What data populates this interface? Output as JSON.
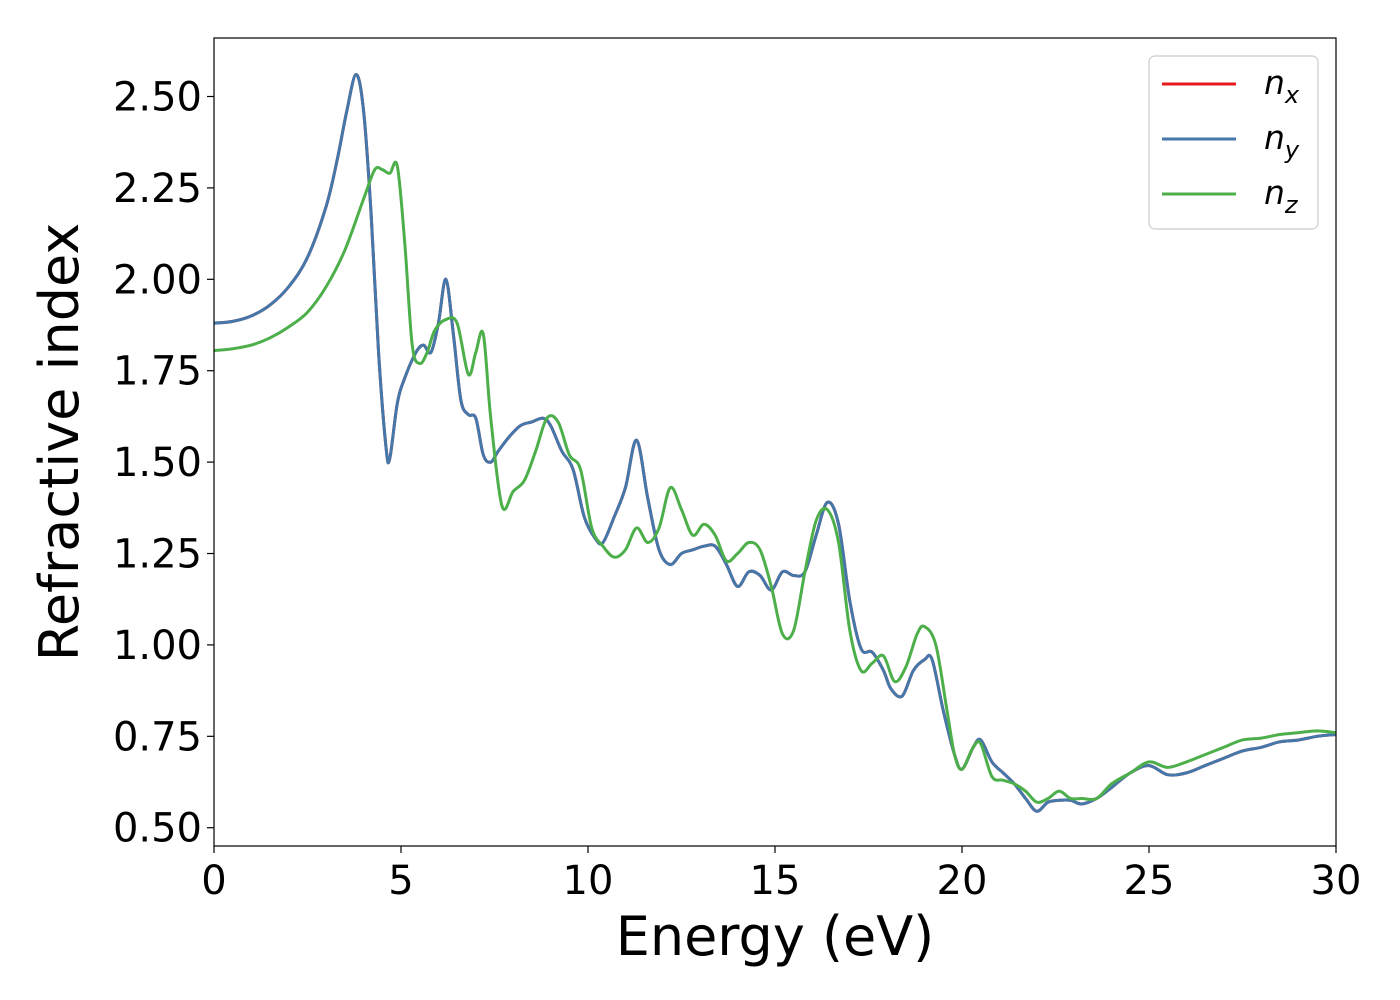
{
  "chart_data": {
    "type": "line",
    "xlabel": "Energy (eV)",
    "ylabel": "Refractive index",
    "xlim": [
      0,
      30
    ],
    "ylim": [
      0.45,
      2.66
    ],
    "xticks": [
      0,
      5,
      10,
      15,
      20,
      25,
      30
    ],
    "xtick_labels": [
      "0",
      "5",
      "10",
      "15",
      "20",
      "25",
      "30"
    ],
    "yticks": [
      0.5,
      0.75,
      1.0,
      1.25,
      1.5,
      1.75,
      2.0,
      2.25,
      2.5
    ],
    "ytick_labels": [
      "0.50",
      "0.75",
      "1.00",
      "1.25",
      "1.50",
      "1.75",
      "2.00",
      "2.25",
      "2.50"
    ],
    "grid": false,
    "legend_position": "top-right",
    "series": [
      {
        "name": "n_x",
        "label_base": "n",
        "label_sub": "x",
        "color": "#e41a1c",
        "x": [
          0,
          0.5,
          1.0,
          1.5,
          2.0,
          2.5,
          3.0,
          3.3,
          3.55,
          3.8,
          4.0,
          4.2,
          4.4,
          4.6,
          4.7,
          4.9,
          5.1,
          5.4,
          5.6,
          5.8,
          6.0,
          6.2,
          6.4,
          6.6,
          6.8,
          7.0,
          7.2,
          7.4,
          7.6,
          7.9,
          8.2,
          8.5,
          8.8,
          9.0,
          9.3,
          9.6,
          9.9,
          10.2,
          10.4,
          10.7,
          11.0,
          11.3,
          11.6,
          11.9,
          12.2,
          12.5,
          12.8,
          13.1,
          13.4,
          13.7,
          14.0,
          14.3,
          14.6,
          14.9,
          15.2,
          15.5,
          15.8,
          16.1,
          16.4,
          16.7,
          17.0,
          17.3,
          17.6,
          17.9,
          18.1,
          18.4,
          18.7,
          19.0,
          19.2,
          19.5,
          19.8,
          20.0,
          20.3,
          20.5,
          20.8,
          21.1,
          21.4,
          21.7,
          22.0,
          22.3,
          22.6,
          22.9,
          23.2,
          23.6,
          24.0,
          24.5,
          25.0,
          25.5,
          26.0,
          26.5,
          27.0,
          27.5,
          28.0,
          28.5,
          29.0,
          29.5,
          30.0
        ],
        "y": [
          1.88,
          1.885,
          1.9,
          1.93,
          1.98,
          2.06,
          2.2,
          2.33,
          2.46,
          2.56,
          2.46,
          2.18,
          1.8,
          1.54,
          1.51,
          1.66,
          1.73,
          1.8,
          1.82,
          1.8,
          1.88,
          2.0,
          1.85,
          1.67,
          1.63,
          1.62,
          1.52,
          1.5,
          1.53,
          1.57,
          1.6,
          1.61,
          1.62,
          1.6,
          1.53,
          1.48,
          1.35,
          1.29,
          1.28,
          1.35,
          1.43,
          1.56,
          1.4,
          1.26,
          1.22,
          1.25,
          1.26,
          1.27,
          1.27,
          1.22,
          1.16,
          1.2,
          1.19,
          1.15,
          1.2,
          1.19,
          1.2,
          1.3,
          1.39,
          1.33,
          1.12,
          0.99,
          0.98,
          0.93,
          0.88,
          0.86,
          0.93,
          0.96,
          0.96,
          0.82,
          0.7,
          0.66,
          0.72,
          0.74,
          0.68,
          0.65,
          0.62,
          0.58,
          0.545,
          0.57,
          0.575,
          0.575,
          0.565,
          0.58,
          0.61,
          0.65,
          0.67,
          0.645,
          0.65,
          0.67,
          0.69,
          0.71,
          0.72,
          0.735,
          0.74,
          0.75,
          0.755
        ]
      },
      {
        "name": "n_y",
        "label_base": "n",
        "label_sub": "y",
        "color": "#4477aa",
        "x": [
          0,
          0.5,
          1.0,
          1.5,
          2.0,
          2.5,
          3.0,
          3.3,
          3.55,
          3.8,
          4.0,
          4.2,
          4.4,
          4.6,
          4.7,
          4.9,
          5.1,
          5.4,
          5.6,
          5.8,
          6.0,
          6.2,
          6.4,
          6.6,
          6.8,
          7.0,
          7.2,
          7.4,
          7.6,
          7.9,
          8.2,
          8.5,
          8.8,
          9.0,
          9.3,
          9.6,
          9.9,
          10.2,
          10.4,
          10.7,
          11.0,
          11.3,
          11.6,
          11.9,
          12.2,
          12.5,
          12.8,
          13.1,
          13.4,
          13.7,
          14.0,
          14.3,
          14.6,
          14.9,
          15.2,
          15.5,
          15.8,
          16.1,
          16.4,
          16.7,
          17.0,
          17.3,
          17.6,
          17.9,
          18.1,
          18.4,
          18.7,
          19.0,
          19.2,
          19.5,
          19.8,
          20.0,
          20.3,
          20.5,
          20.8,
          21.1,
          21.4,
          21.7,
          22.0,
          22.3,
          22.6,
          22.9,
          23.2,
          23.6,
          24.0,
          24.5,
          25.0,
          25.5,
          26.0,
          26.5,
          27.0,
          27.5,
          28.0,
          28.5,
          29.0,
          29.5,
          30.0
        ],
        "y": [
          1.88,
          1.885,
          1.9,
          1.93,
          1.98,
          2.06,
          2.2,
          2.33,
          2.46,
          2.56,
          2.46,
          2.18,
          1.8,
          1.54,
          1.51,
          1.66,
          1.73,
          1.8,
          1.82,
          1.8,
          1.88,
          2.0,
          1.85,
          1.67,
          1.63,
          1.62,
          1.52,
          1.5,
          1.53,
          1.57,
          1.6,
          1.61,
          1.62,
          1.6,
          1.53,
          1.48,
          1.35,
          1.29,
          1.28,
          1.35,
          1.43,
          1.56,
          1.4,
          1.26,
          1.22,
          1.25,
          1.26,
          1.27,
          1.27,
          1.22,
          1.16,
          1.2,
          1.19,
          1.15,
          1.2,
          1.19,
          1.2,
          1.3,
          1.39,
          1.33,
          1.12,
          0.99,
          0.98,
          0.93,
          0.88,
          0.86,
          0.93,
          0.96,
          0.96,
          0.82,
          0.7,
          0.66,
          0.72,
          0.74,
          0.68,
          0.65,
          0.62,
          0.58,
          0.545,
          0.57,
          0.575,
          0.575,
          0.565,
          0.58,
          0.61,
          0.65,
          0.67,
          0.645,
          0.65,
          0.67,
          0.69,
          0.71,
          0.72,
          0.735,
          0.74,
          0.75,
          0.755
        ]
      },
      {
        "name": "n_z",
        "label_base": "n",
        "label_sub": "z",
        "color": "#4daf4a",
        "x": [
          0,
          0.5,
          1.0,
          1.5,
          2.0,
          2.5,
          3.0,
          3.5,
          4.0,
          4.3,
          4.5,
          4.7,
          4.9,
          5.1,
          5.3,
          5.5,
          5.7,
          5.9,
          6.2,
          6.5,
          6.8,
          7.0,
          7.2,
          7.4,
          7.7,
          8.0,
          8.3,
          8.6,
          8.9,
          9.2,
          9.5,
          9.8,
          10.1,
          10.4,
          10.7,
          11.0,
          11.3,
          11.6,
          11.9,
          12.2,
          12.5,
          12.8,
          13.1,
          13.4,
          13.7,
          14.0,
          14.3,
          14.6,
          14.9,
          15.2,
          15.5,
          15.8,
          16.1,
          16.4,
          16.7,
          17.0,
          17.3,
          17.6,
          17.9,
          18.2,
          18.5,
          18.8,
          19.0,
          19.3,
          19.6,
          19.8,
          20.0,
          20.3,
          20.5,
          20.8,
          21.1,
          21.4,
          21.7,
          22.0,
          22.3,
          22.6,
          22.9,
          23.2,
          23.6,
          24.0,
          24.5,
          25.0,
          25.5,
          26.0,
          26.5,
          27.0,
          27.5,
          28.0,
          28.5,
          29.0,
          29.5,
          30.0
        ],
        "y": [
          1.805,
          1.81,
          1.82,
          1.84,
          1.87,
          1.91,
          1.98,
          2.08,
          2.22,
          2.3,
          2.3,
          2.29,
          2.31,
          2.1,
          1.82,
          1.77,
          1.8,
          1.86,
          1.89,
          1.88,
          1.74,
          1.8,
          1.85,
          1.62,
          1.38,
          1.42,
          1.45,
          1.53,
          1.62,
          1.61,
          1.52,
          1.48,
          1.32,
          1.27,
          1.24,
          1.26,
          1.32,
          1.28,
          1.32,
          1.43,
          1.37,
          1.3,
          1.33,
          1.3,
          1.23,
          1.25,
          1.28,
          1.26,
          1.16,
          1.03,
          1.04,
          1.2,
          1.34,
          1.37,
          1.28,
          1.04,
          0.93,
          0.95,
          0.97,
          0.9,
          0.94,
          1.03,
          1.05,
          1.0,
          0.82,
          0.7,
          0.66,
          0.72,
          0.73,
          0.64,
          0.63,
          0.62,
          0.6,
          0.57,
          0.58,
          0.6,
          0.58,
          0.58,
          0.58,
          0.62,
          0.65,
          0.68,
          0.665,
          0.68,
          0.7,
          0.72,
          0.74,
          0.745,
          0.755,
          0.76,
          0.765,
          0.76
        ]
      }
    ]
  }
}
